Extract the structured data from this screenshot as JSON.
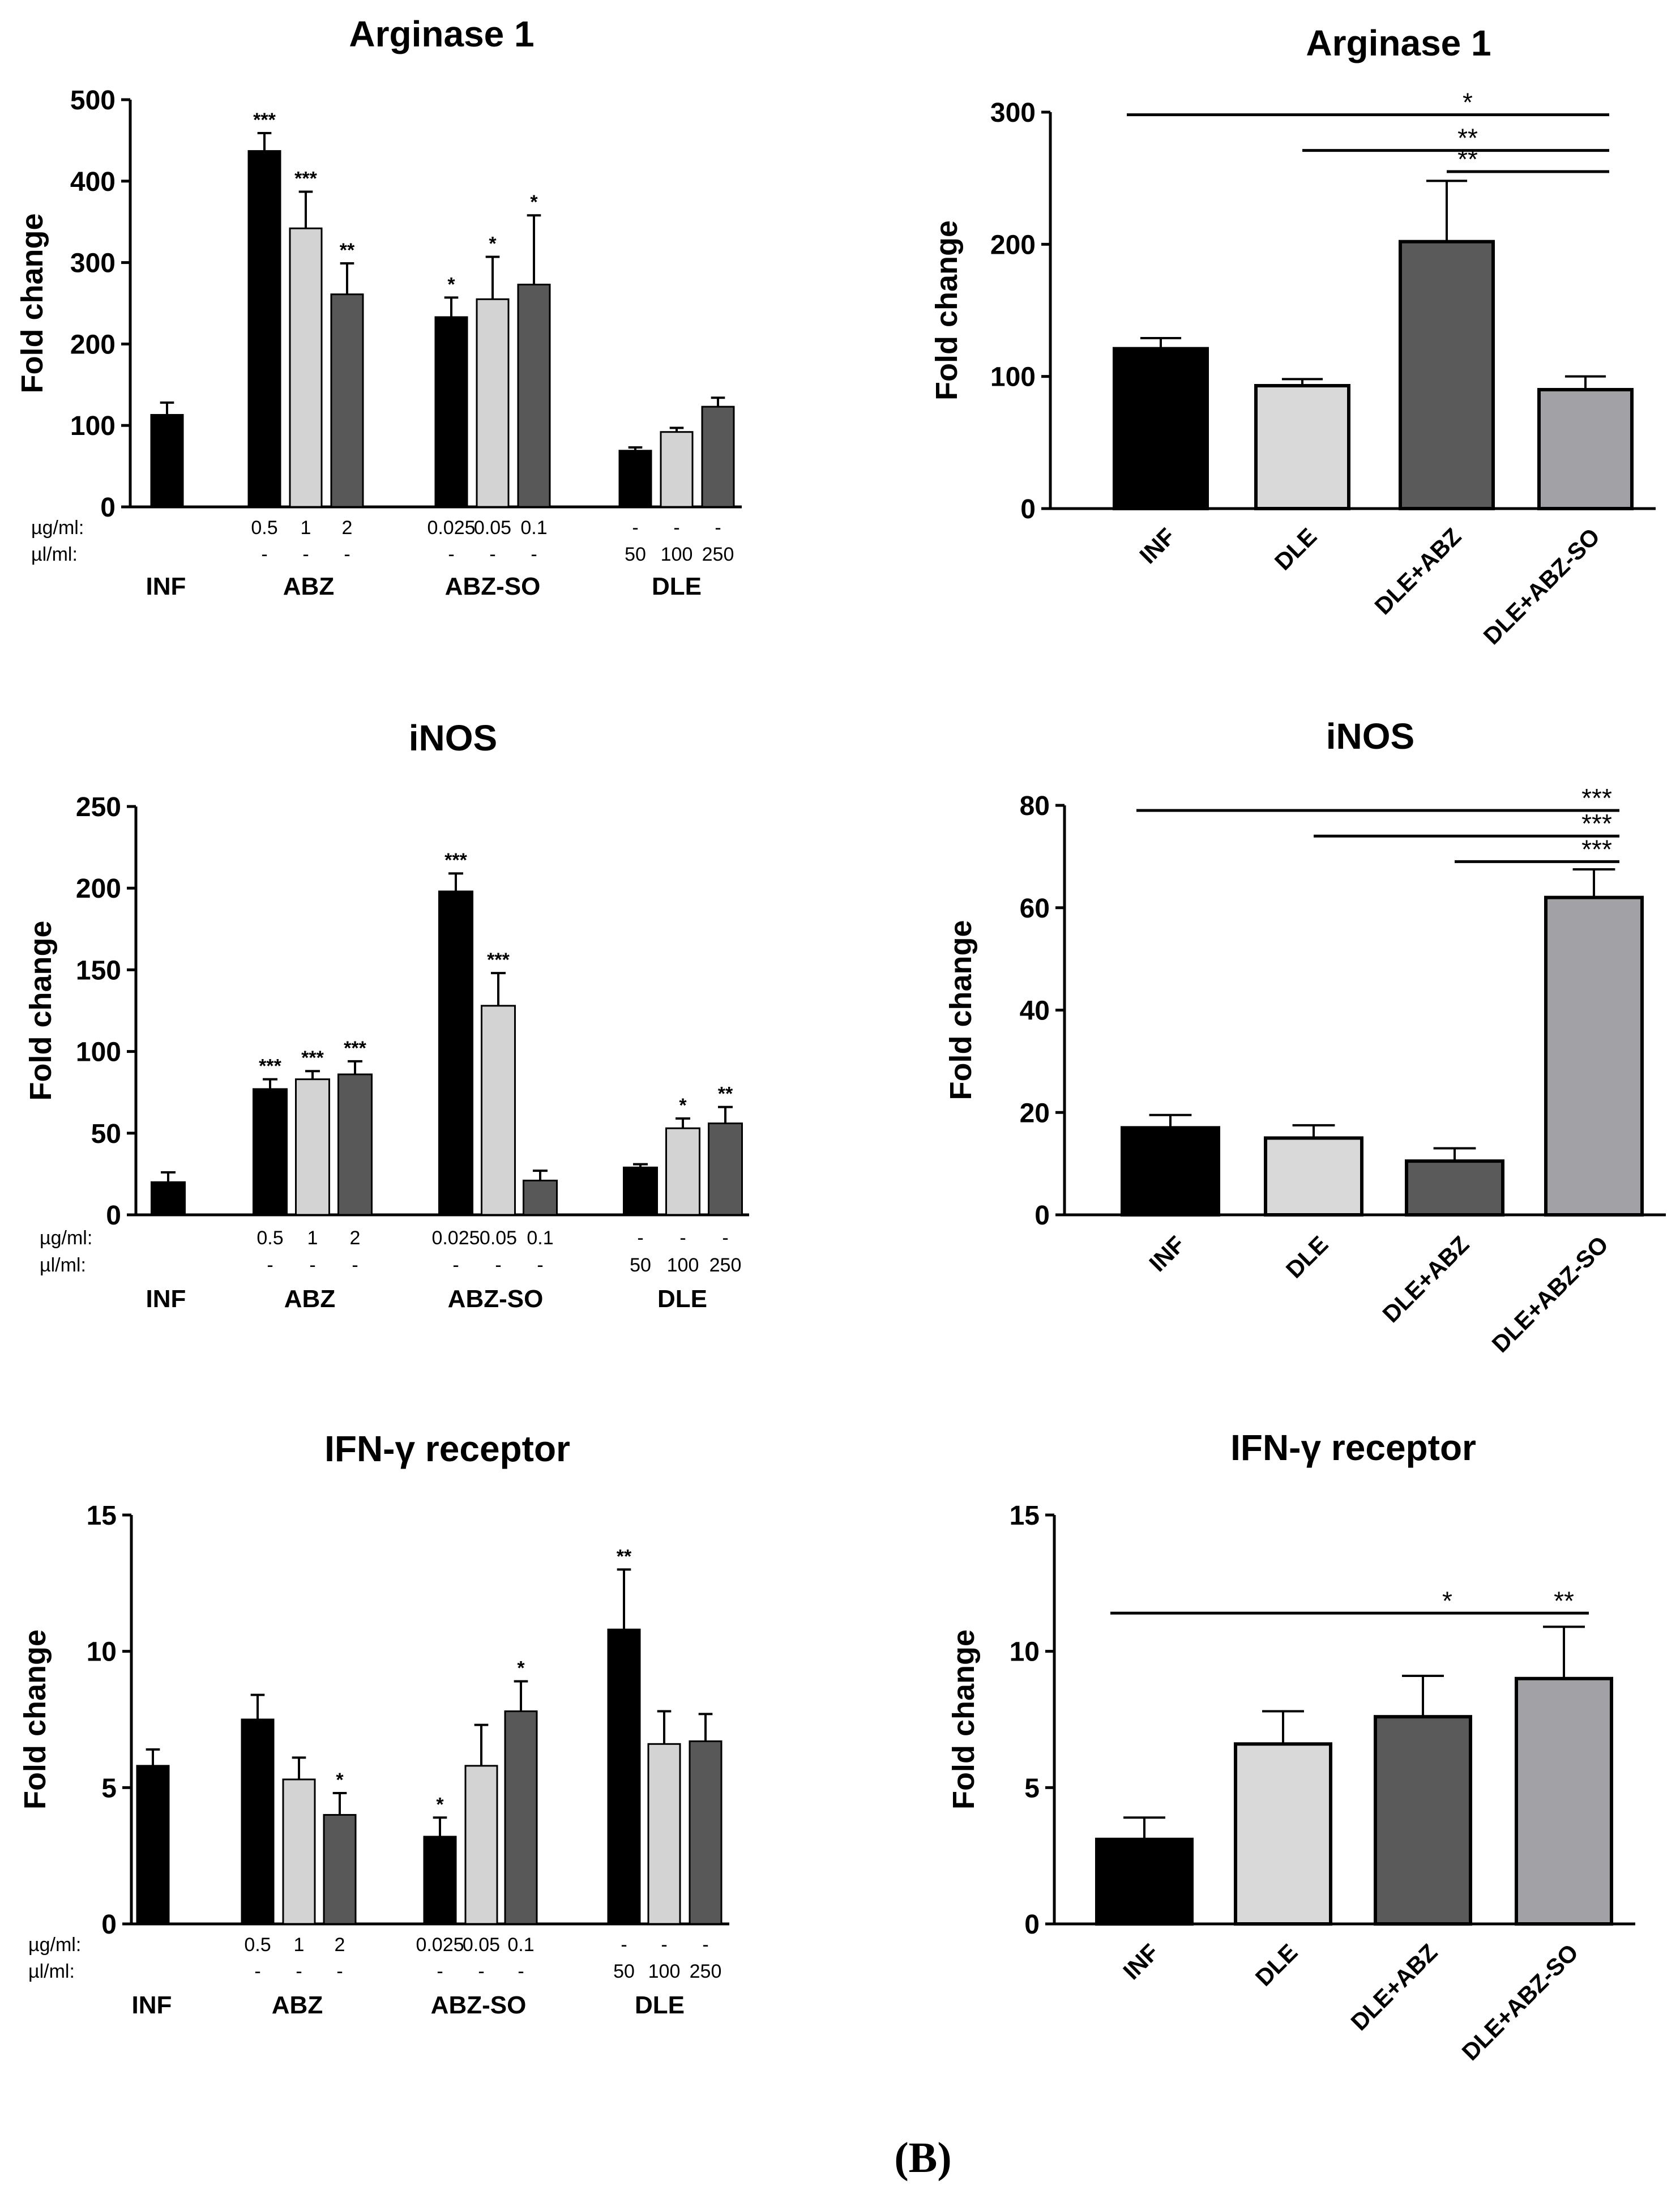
{
  "panel_label": "(B)",
  "row_labels": {
    "ug": "µg/ml:",
    "ul": "µl/ml:"
  },
  "chart_data": [
    {
      "id": "L1",
      "type": "bar",
      "title": "Arginase 1",
      "ylabel": "Fold change",
      "ylim": [
        0,
        500
      ],
      "yticks": [
        0,
        100,
        200,
        300,
        400,
        500
      ],
      "groups": [
        "INF",
        "ABZ",
        "ABZ-SO",
        "DLE"
      ],
      "conc_ug": [
        "",
        "0.5",
        "1",
        "2",
        "0.025",
        "0.05",
        "0.1",
        "-",
        "-",
        "-"
      ],
      "conc_ul": [
        "",
        "-",
        "-",
        "-",
        "-",
        "-",
        "-",
        "50",
        "100",
        "250"
      ],
      "values": [
        113,
        437,
        342,
        261,
        233,
        255,
        273,
        69,
        92,
        123
      ],
      "errors": [
        15,
        22,
        45,
        38,
        24,
        52,
        85,
        4,
        5,
        11
      ],
      "sig": [
        "",
        "***",
        "***",
        "**",
        "*",
        "*",
        "*",
        "",
        "",
        ""
      ],
      "colors": [
        "#000000",
        "#000000",
        "#d3d3d3",
        "#585858",
        "#000000",
        "#d3d3d3",
        "#585858",
        "#000000",
        "#d3d3d3",
        "#585858"
      ]
    },
    {
      "id": "R1",
      "type": "bar",
      "title": "Arginase 1",
      "ylabel": "Fold change",
      "ylim": [
        0,
        300
      ],
      "yticks": [
        0,
        100,
        200,
        300
      ],
      "categories": [
        "INF",
        "DLE",
        "DLE+ABZ",
        "DLE+ABZ-SO"
      ],
      "values": [
        121,
        93,
        202,
        90
      ],
      "errors": [
        8,
        5,
        46,
        10
      ],
      "colors": [
        "#000000",
        "#d9d9d9",
        "#5a5a5a",
        "#a2a2a6"
      ],
      "brackets": [
        {
          "from": 0,
          "value": 298,
          "label": "*"
        },
        {
          "from": 1,
          "value": 271,
          "label": "**"
        },
        {
          "from": 2,
          "value": 255,
          "label": "**"
        }
      ]
    },
    {
      "id": "L2",
      "type": "bar",
      "title": "iNOS",
      "ylabel": "Fold change",
      "ylim": [
        0,
        250
      ],
      "yticks": [
        0,
        50,
        100,
        150,
        200,
        250
      ],
      "groups": [
        "INF",
        "ABZ",
        "ABZ-SO",
        "DLE"
      ],
      "conc_ug": [
        "",
        "0.5",
        "1",
        "2",
        "0.025",
        "0.05",
        "0.1",
        "-",
        "-",
        "-"
      ],
      "conc_ul": [
        "",
        "-",
        "-",
        "-",
        "-",
        "-",
        "-",
        "50",
        "100",
        "250"
      ],
      "values": [
        20,
        77,
        83,
        86,
        198,
        128,
        21,
        29,
        53,
        56
      ],
      "errors": [
        6,
        6,
        5,
        8,
        11,
        20,
        6,
        2,
        6,
        10
      ],
      "sig": [
        "",
        "***",
        "***",
        "***",
        "***",
        "***",
        "",
        "",
        "*",
        "**"
      ],
      "colors": [
        "#000000",
        "#000000",
        "#d3d3d3",
        "#585858",
        "#000000",
        "#d3d3d3",
        "#585858",
        "#000000",
        "#d3d3d3",
        "#585858"
      ]
    },
    {
      "id": "R2",
      "type": "bar",
      "title": "iNOS",
      "ylabel": "Fold change",
      "ylim": [
        0,
        80
      ],
      "yticks": [
        0,
        20,
        40,
        60,
        80
      ],
      "categories": [
        "INF",
        "DLE",
        "DLE+ABZ",
        "DLE+ABZ-SO"
      ],
      "values": [
        17,
        15,
        10.5,
        62
      ],
      "errors": [
        2.5,
        2.5,
        2.5,
        5.5
      ],
      "colors": [
        "#000000",
        "#d9d9d9",
        "#5a5a5a",
        "#a2a2a6"
      ],
      "brackets": [
        {
          "from": 0,
          "value": 79,
          "label": "***"
        },
        {
          "from": 1,
          "value": 74,
          "label": "***"
        },
        {
          "from": 2,
          "value": 69,
          "label": "***"
        }
      ]
    },
    {
      "id": "L3",
      "type": "bar",
      "title": "IFN-γ receptor",
      "ylabel": "Fold change",
      "ylim": [
        0,
        15
      ],
      "yticks": [
        0,
        5,
        10,
        15
      ],
      "groups": [
        "INF",
        "ABZ",
        "ABZ-SO",
        "DLE"
      ],
      "conc_ug": [
        "",
        "0.5",
        "1",
        "2",
        "0.025",
        "0.05",
        "0.1",
        "-",
        "-",
        "-"
      ],
      "conc_ul": [
        "",
        "-",
        "-",
        "-",
        "-",
        "-",
        "-",
        "50",
        "100",
        "250"
      ],
      "values": [
        5.8,
        7.5,
        5.3,
        4.0,
        3.2,
        5.8,
        7.8,
        10.8,
        6.6,
        6.7
      ],
      "errors": [
        0.6,
        0.9,
        0.8,
        0.8,
        0.7,
        1.5,
        1.1,
        2.2,
        1.2,
        1.0
      ],
      "sig": [
        "",
        "",
        "",
        "*",
        "*",
        "",
        "*",
        "**",
        "",
        ""
      ],
      "colors": [
        "#000000",
        "#000000",
        "#d3d3d3",
        "#585858",
        "#000000",
        "#d3d3d3",
        "#585858",
        "#000000",
        "#d3d3d3",
        "#585858"
      ]
    },
    {
      "id": "R3",
      "type": "bar",
      "title": "IFN-γ receptor",
      "ylabel": "Fold change",
      "ylim": [
        0,
        15
      ],
      "yticks": [
        0,
        5,
        10,
        15
      ],
      "categories": [
        "INF",
        "DLE",
        "DLE+ABZ",
        "DLE+ABZ-SO"
      ],
      "values": [
        3.1,
        6.6,
        7.6,
        9.0
      ],
      "errors": [
        0.8,
        1.2,
        1.5,
        1.9
      ],
      "colors": [
        "#000000",
        "#d9d9d9",
        "#5a5a5a",
        "#a2a2a6"
      ],
      "brackets": [
        {
          "from": 0,
          "value": 11.4,
          "label": "*"
        }
      ],
      "bar_labels": [
        {
          "index": 3,
          "value": 11.4,
          "label": "**"
        }
      ]
    }
  ]
}
